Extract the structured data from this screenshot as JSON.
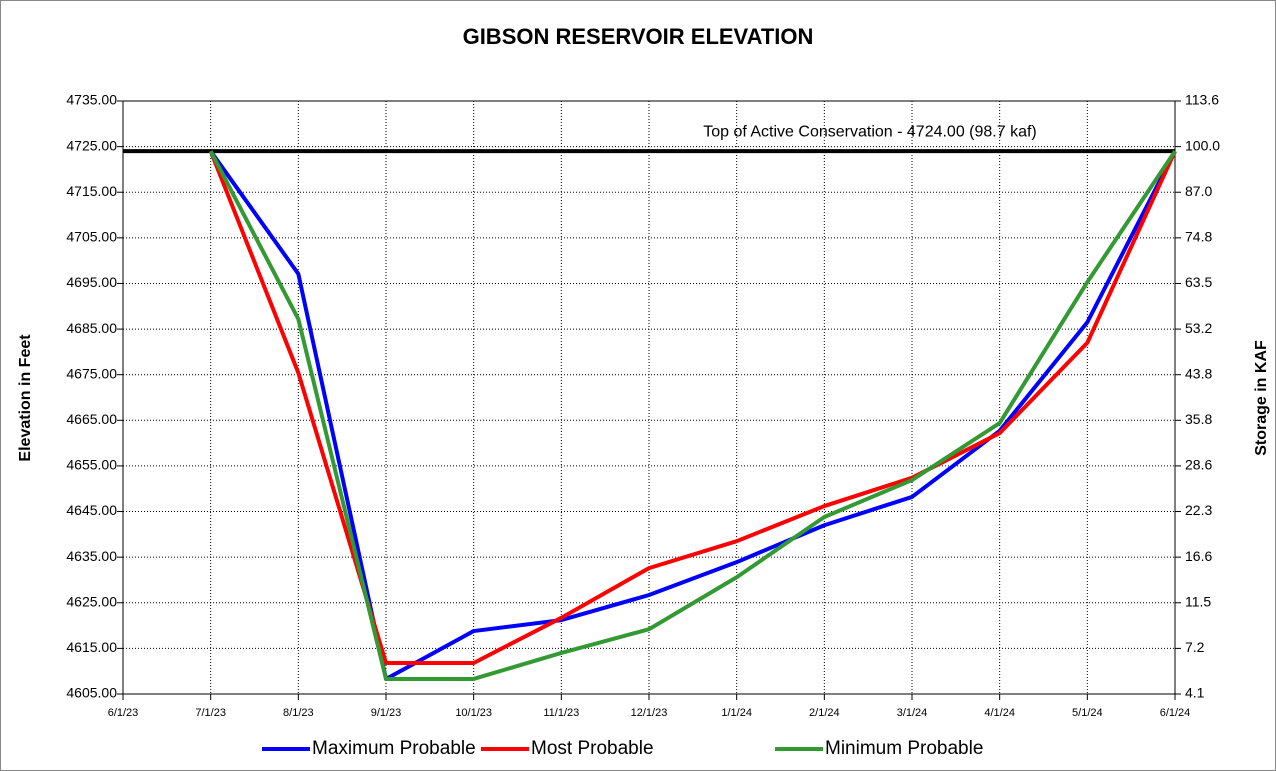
{
  "chart_data": {
    "type": "line",
    "title": "GIBSON RESERVOIR ELEVATION",
    "y_label": "Elevation in Feet",
    "y2_label": "Storage in KAF",
    "annotation": "Top of Active Conservation - 4724.00 (98.7 kaf)",
    "reference_line": {
      "value": 4724,
      "color": "#000000"
    },
    "categories": [
      "6/1/23",
      "7/1/23",
      "8/1/23",
      "9/1/23",
      "10/1/23",
      "11/1/23",
      "12/1/23",
      "1/1/24",
      "2/1/24",
      "3/1/24",
      "4/1/24",
      "5/1/24",
      "6/1/24"
    ],
    "series": [
      {
        "name": "Maximum Probable",
        "color": "#0000ff",
        "values": [
          null,
          4724,
          4697.1,
          4608.3,
          4618.8,
          4621.2,
          4626.7,
          4633.9,
          4642.0,
          4648.2,
          4662.7,
          4686.5,
          4724
        ]
      },
      {
        "name": "Most Probable",
        "color": "#ff0000",
        "values": [
          null,
          4724,
          4675.4,
          4611.8,
          4611.8,
          4621.7,
          4632.6,
          4638.5,
          4646.2,
          4652.4,
          4662.2,
          4682.0,
          4724
        ]
      },
      {
        "name": "Minimum Probable",
        "color": "#339933",
        "values": [
          null,
          4724,
          4687.2,
          4608.3,
          4608.3,
          4614.0,
          4619.2,
          4630.6,
          4643.8,
          4651.9,
          4664.4,
          4695.3,
          4724
        ]
      }
    ],
    "ylim": [
      4605,
      4735
    ],
    "yticks": [
      {
        "value": 4605,
        "label": "4605.00"
      },
      {
        "value": 4615,
        "label": "4615.00"
      },
      {
        "value": 4625,
        "label": "4625.00"
      },
      {
        "value": 4635,
        "label": "4635.00"
      },
      {
        "value": 4645,
        "label": "4645.00"
      },
      {
        "value": 4655,
        "label": "4655.00"
      },
      {
        "value": 4665,
        "label": "4665.00"
      },
      {
        "value": 4675,
        "label": "4675.00"
      },
      {
        "value": 4685,
        "label": "4685.00"
      },
      {
        "value": 4695,
        "label": "4695.00"
      },
      {
        "value": 4705,
        "label": "4705.00"
      },
      {
        "value": 4715,
        "label": "4715.00"
      },
      {
        "value": 4725,
        "label": "4725.00"
      },
      {
        "value": 4735,
        "label": "4735.00"
      }
    ],
    "y2lim": [
      4.1,
      113.6
    ],
    "y2ticks": [
      4.1,
      7.2,
      11.5,
      16.6,
      22.3,
      28.6,
      35.8,
      43.8,
      53.2,
      63.5,
      74.8,
      {
        "value": 87,
        "label": "87.0"
      },
      {
        "value": 100,
        "label": "100.0"
      },
      113.6
    ],
    "grid": true,
    "legend": "bottom"
  }
}
